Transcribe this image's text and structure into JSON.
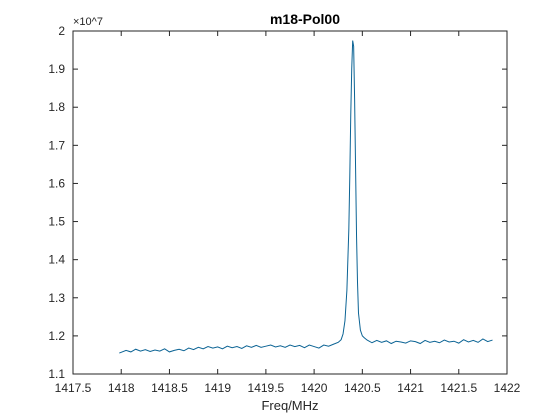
{
  "chart_data": {
    "type": "line",
    "title": "m18-Pol00",
    "xlabel": "Freq/MHz",
    "ylabel": "",
    "xlim": [
      1417.5,
      1422
    ],
    "ylim": [
      1.1,
      2.0
    ],
    "y_multiplier": "×10^7",
    "x_ticks": [
      1417.5,
      1418,
      1418.5,
      1419,
      1419.5,
      1420,
      1420.5,
      1421,
      1421.5,
      1422
    ],
    "y_ticks": [
      1.1,
      1.2,
      1.3,
      1.4,
      1.5,
      1.6,
      1.7,
      1.8,
      1.9,
      2.0
    ],
    "x_tick_labels": [
      "1417.5",
      "1418",
      "1418.5",
      "1419",
      "1419.5",
      "1420",
      "1420.5",
      "1421",
      "1421.5",
      "1422"
    ],
    "y_tick_labels": [
      "1.1",
      "1.2",
      "1.3",
      "1.4",
      "1.5",
      "1.6",
      "1.7",
      "1.8",
      "1.9",
      "2"
    ],
    "grid": false,
    "series_color": "#0b6394",
    "series": [
      {
        "x": [
          1417.98,
          1418.05,
          1418.1,
          1418.15,
          1418.2,
          1418.25,
          1418.3,
          1418.35,
          1418.4,
          1418.45,
          1418.5,
          1418.55,
          1418.6,
          1418.65,
          1418.7,
          1418.75,
          1418.8,
          1418.85,
          1418.9,
          1418.95,
          1419.0,
          1419.05,
          1419.1,
          1419.15,
          1419.2,
          1419.25,
          1419.3,
          1419.35,
          1419.4,
          1419.45,
          1419.5,
          1419.55,
          1419.6,
          1419.65,
          1419.7,
          1419.75,
          1419.8,
          1419.85,
          1419.9,
          1419.95,
          1420.0,
          1420.05,
          1420.1,
          1420.15,
          1420.2,
          1420.25,
          1420.28,
          1420.3,
          1420.32,
          1420.34,
          1420.36,
          1420.37,
          1420.38,
          1420.39,
          1420.4,
          1420.41,
          1420.42,
          1420.43,
          1420.44,
          1420.45,
          1420.46,
          1420.48,
          1420.5,
          1420.52,
          1420.55,
          1420.6,
          1420.65,
          1420.7,
          1420.75,
          1420.8,
          1420.85,
          1420.9,
          1420.95,
          1421.0,
          1421.05,
          1421.1,
          1421.15,
          1421.2,
          1421.25,
          1421.3,
          1421.35,
          1421.4,
          1421.45,
          1421.5,
          1421.55,
          1421.6,
          1421.65,
          1421.7,
          1421.75,
          1421.8,
          1421.85
        ],
        "y": [
          1.155,
          1.162,
          1.158,
          1.165,
          1.16,
          1.164,
          1.159,
          1.163,
          1.16,
          1.166,
          1.158,
          1.162,
          1.165,
          1.161,
          1.168,
          1.164,
          1.17,
          1.166,
          1.172,
          1.168,
          1.171,
          1.166,
          1.173,
          1.169,
          1.172,
          1.167,
          1.174,
          1.17,
          1.175,
          1.17,
          1.173,
          1.176,
          1.171,
          1.174,
          1.17,
          1.176,
          1.172,
          1.175,
          1.169,
          1.176,
          1.172,
          1.168,
          1.176,
          1.173,
          1.178,
          1.183,
          1.19,
          1.205,
          1.24,
          1.32,
          1.48,
          1.62,
          1.78,
          1.9,
          1.975,
          1.96,
          1.82,
          1.64,
          1.46,
          1.34,
          1.26,
          1.215,
          1.2,
          1.195,
          1.189,
          1.182,
          1.188,
          1.183,
          1.187,
          1.18,
          1.186,
          1.184,
          1.181,
          1.187,
          1.185,
          1.18,
          1.188,
          1.183,
          1.186,
          1.182,
          1.189,
          1.184,
          1.186,
          1.181,
          1.19,
          1.184,
          1.188,
          1.183,
          1.192,
          1.185,
          1.189
        ]
      }
    ]
  }
}
